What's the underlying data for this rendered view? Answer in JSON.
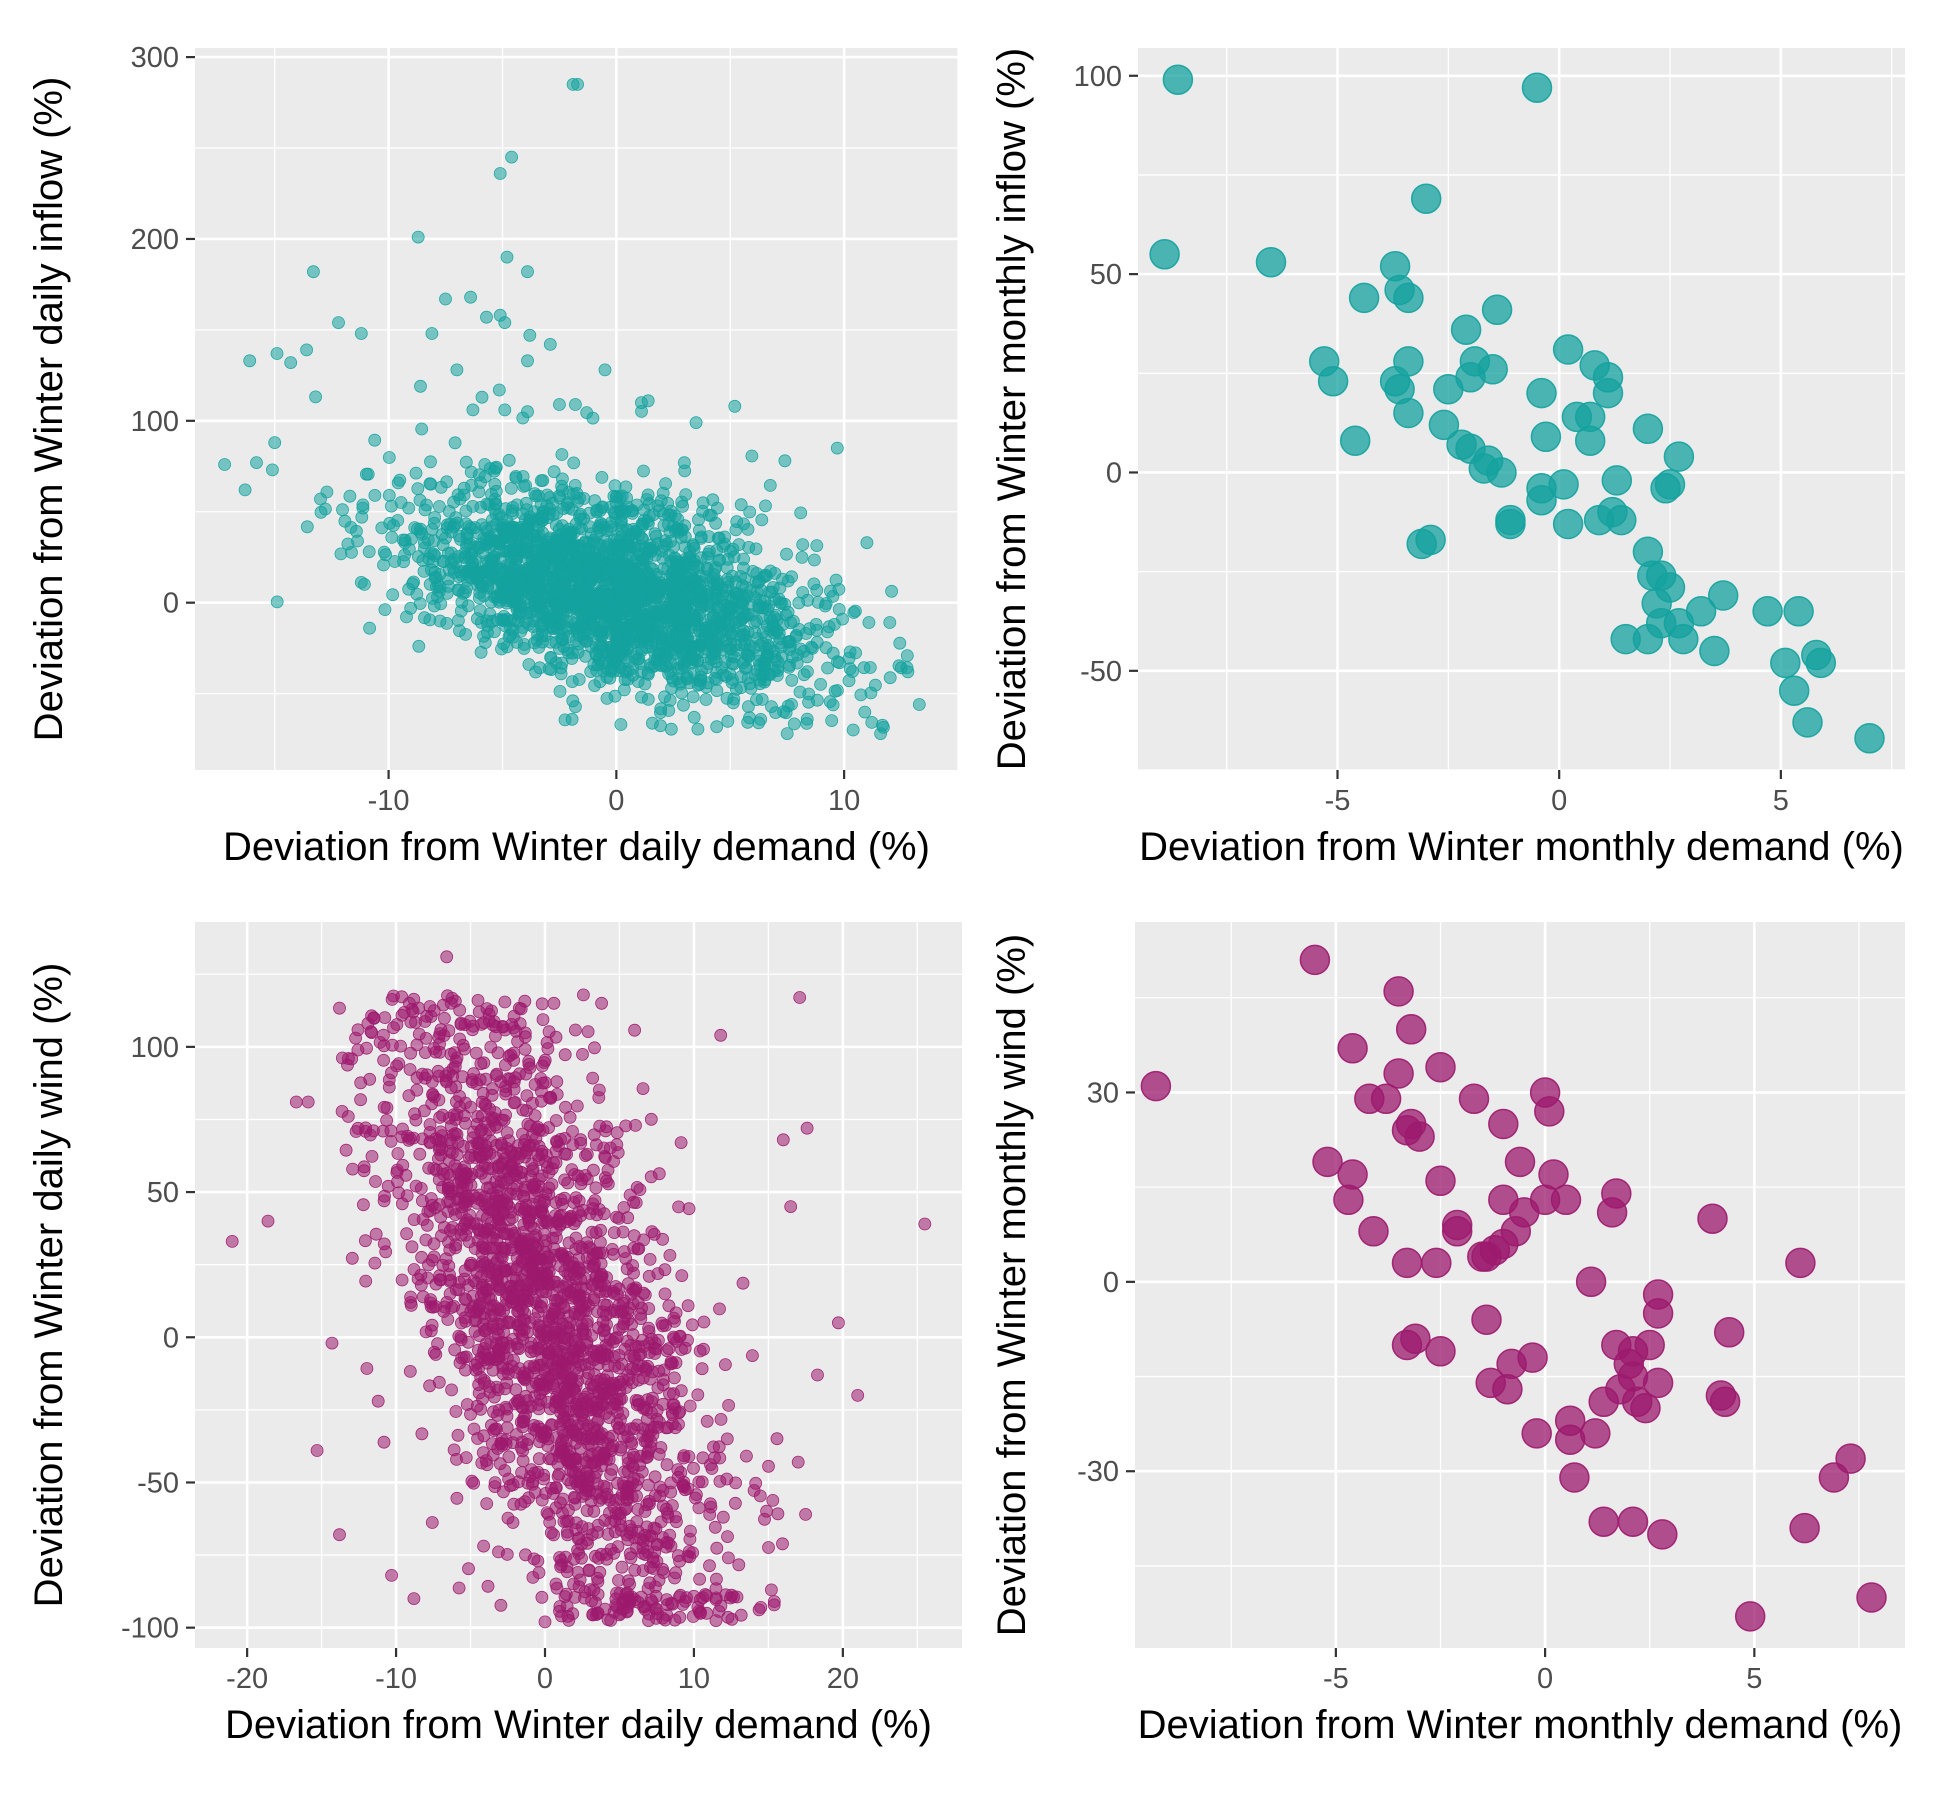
{
  "colors": {
    "teal": "#14a29f",
    "magenta": "#9c1a6e",
    "panel": "#ebebeb",
    "grid": "#ffffff"
  },
  "chart_data": [
    {
      "type": "scatter",
      "id": "daily-inflow",
      "title": "",
      "xlabel": "Deviation from Winter daily demand (%)",
      "ylabel": "Deviation from Winter daily inflow (%)",
      "xlim": [
        -18.5,
        15
      ],
      "ylim": [
        -92,
        305
      ],
      "xticks": [
        -10,
        0,
        10
      ],
      "yticks": [
        0,
        100,
        200,
        300
      ],
      "color": "teal",
      "marker_size": "small",
      "opacity": 0.55,
      "point_count_approx": 2400,
      "correlation_slope": -3.2,
      "intercept": 5,
      "x_range_observed": [
        -17,
        13
      ],
      "y_range_observed": [
        -72,
        285
      ],
      "notable_points": [
        {
          "x": -1.9,
          "y": 285
        },
        {
          "x": -1.7,
          "y": 285
        },
        {
          "x": -4.6,
          "y": 245
        },
        {
          "x": -5.1,
          "y": 236
        },
        {
          "x": -4.8,
          "y": 190
        },
        {
          "x": -3.9,
          "y": 182
        },
        {
          "x": -8.7,
          "y": 201
        },
        {
          "x": -13.3,
          "y": 182
        },
        {
          "x": -12.2,
          "y": 154
        },
        {
          "x": -11.2,
          "y": 148
        },
        {
          "x": -16.1,
          "y": 133
        },
        {
          "x": -14.9,
          "y": 137
        },
        {
          "x": -14.3,
          "y": 132
        },
        {
          "x": -13.6,
          "y": 139
        },
        {
          "x": -8.1,
          "y": 148
        },
        {
          "x": -7.5,
          "y": 167
        },
        {
          "x": -6.4,
          "y": 168
        },
        {
          "x": -5.7,
          "y": 157
        },
        {
          "x": -5.1,
          "y": 158
        },
        {
          "x": -4.9,
          "y": 154
        },
        {
          "x": -3.8,
          "y": 147
        },
        {
          "x": -2.9,
          "y": 142
        },
        {
          "x": -3.9,
          "y": 133
        },
        {
          "x": -7.0,
          "y": 128
        },
        {
          "x": -0.5,
          "y": 128
        },
        {
          "x": -8.6,
          "y": 119
        },
        {
          "x": -5.9,
          "y": 113
        },
        {
          "x": -6.3,
          "y": 106
        },
        {
          "x": -4.9,
          "y": 106
        },
        {
          "x": -3.9,
          "y": 105
        },
        {
          "x": -2.5,
          "y": 109
        },
        {
          "x": -1.8,
          "y": 109
        },
        {
          "x": 1.1,
          "y": 110
        },
        {
          "x": 1.4,
          "y": 111
        },
        {
          "x": 5.2,
          "y": 108
        },
        {
          "x": 3.5,
          "y": 99
        },
        {
          "x": 9.7,
          "y": 85
        },
        {
          "x": 7.4,
          "y": 78
        },
        {
          "x": -17.2,
          "y": 76
        },
        {
          "x": -15.8,
          "y": 77
        },
        {
          "x": -15.1,
          "y": 73
        },
        {
          "x": -16.3,
          "y": 62
        },
        {
          "x": -15.0,
          "y": 88
        },
        {
          "x": 11.0,
          "y": 33
        },
        {
          "x": 12.8,
          "y": -38
        },
        {
          "x": 13.3,
          "y": -56
        },
        {
          "x": 11.6,
          "y": -72
        },
        {
          "x": 10.4,
          "y": -70
        },
        {
          "x": 0.2,
          "y": -67
        },
        {
          "x": 7.5,
          "y": -72
        }
      ]
    },
    {
      "type": "scatter",
      "id": "monthly-inflow",
      "title": "",
      "xlabel": "Deviation from Winter monthly demand (%)",
      "ylabel": "Deviation from Winter monthly inflow (%)",
      "xlim": [
        -9.5,
        7.8
      ],
      "ylim": [
        -75,
        107
      ],
      "xticks": [
        -5,
        0,
        5
      ],
      "yticks": [
        -50,
        0,
        50,
        100
      ],
      "color": "teal",
      "marker_size": "large",
      "opacity": 0.75,
      "points": [
        {
          "x": -8.6,
          "y": 99
        },
        {
          "x": -0.5,
          "y": 97
        },
        {
          "x": -8.9,
          "y": 55
        },
        {
          "x": -6.5,
          "y": 53
        },
        {
          "x": -3.0,
          "y": 69
        },
        {
          "x": -3.7,
          "y": 52
        },
        {
          "x": -3.6,
          "y": 46
        },
        {
          "x": -3.4,
          "y": 44
        },
        {
          "x": -4.4,
          "y": 44
        },
        {
          "x": -1.4,
          "y": 41
        },
        {
          "x": -2.1,
          "y": 36
        },
        {
          "x": -5.3,
          "y": 28
        },
        {
          "x": -5.1,
          "y": 23
        },
        {
          "x": -3.4,
          "y": 28
        },
        {
          "x": -3.7,
          "y": 23
        },
        {
          "x": -3.6,
          "y": 21
        },
        {
          "x": -2.5,
          "y": 21
        },
        {
          "x": -1.9,
          "y": 28
        },
        {
          "x": -2.0,
          "y": 24
        },
        {
          "x": -1.5,
          "y": 26
        },
        {
          "x": -3.4,
          "y": 15
        },
        {
          "x": -2.6,
          "y": 12
        },
        {
          "x": -4.6,
          "y": 8
        },
        {
          "x": -2.2,
          "y": 7
        },
        {
          "x": -2.0,
          "y": 6
        },
        {
          "x": -1.6,
          "y": 3
        },
        {
          "x": -1.7,
          "y": 1
        },
        {
          "x": -1.3,
          "y": 0
        },
        {
          "x": -0.4,
          "y": -7
        },
        {
          "x": -1.1,
          "y": -12
        },
        {
          "x": -1.1,
          "y": -13
        },
        {
          "x": -3.1,
          "y": -18
        },
        {
          "x": -2.9,
          "y": -17
        },
        {
          "x": -0.4,
          "y": -4
        },
        {
          "x": 0.2,
          "y": 31
        },
        {
          "x": 0.8,
          "y": 27
        },
        {
          "x": 1.1,
          "y": 24
        },
        {
          "x": 1.1,
          "y": 20
        },
        {
          "x": -0.4,
          "y": 20
        },
        {
          "x": 0.4,
          "y": 14
        },
        {
          "x": 0.7,
          "y": 14
        },
        {
          "x": -0.3,
          "y": 9
        },
        {
          "x": 0.7,
          "y": 8
        },
        {
          "x": 0.1,
          "y": -3
        },
        {
          "x": 0.2,
          "y": -13
        },
        {
          "x": 0.9,
          "y": -12
        },
        {
          "x": 1.3,
          "y": -2
        },
        {
          "x": 1.2,
          "y": -10
        },
        {
          "x": 1.4,
          "y": -12
        },
        {
          "x": 2.0,
          "y": 11
        },
        {
          "x": 2.7,
          "y": 4
        },
        {
          "x": 2.5,
          "y": -3
        },
        {
          "x": 2.4,
          "y": -4
        },
        {
          "x": 2.0,
          "y": -20
        },
        {
          "x": 2.1,
          "y": -26
        },
        {
          "x": 2.3,
          "y": -26
        },
        {
          "x": 2.5,
          "y": -29
        },
        {
          "x": 2.2,
          "y": -33
        },
        {
          "x": 2.3,
          "y": -38
        },
        {
          "x": 2.0,
          "y": -42
        },
        {
          "x": 1.5,
          "y": -42
        },
        {
          "x": 2.7,
          "y": -38
        },
        {
          "x": 2.8,
          "y": -42
        },
        {
          "x": 3.2,
          "y": -35
        },
        {
          "x": 3.5,
          "y": -45
        },
        {
          "x": 3.7,
          "y": -31
        },
        {
          "x": 4.7,
          "y": -35
        },
        {
          "x": 5.4,
          "y": -35
        },
        {
          "x": 5.1,
          "y": -48
        },
        {
          "x": 5.8,
          "y": -46
        },
        {
          "x": 5.9,
          "y": -48
        },
        {
          "x": 5.3,
          "y": -55
        },
        {
          "x": 5.6,
          "y": -63
        },
        {
          "x": 7.0,
          "y": -67
        }
      ]
    },
    {
      "type": "scatter",
      "id": "daily-wind",
      "title": "",
      "xlabel": "Deviation from Winter daily demand (%)",
      "ylabel": "Deviation from Winter daily wind (%)",
      "xlim": [
        -23.5,
        28
      ],
      "ylim": [
        -107,
        143
      ],
      "xticks": [
        -20,
        -10,
        0,
        10,
        20
      ],
      "yticks": [
        -100,
        -50,
        0,
        50,
        100
      ],
      "color": "magenta",
      "marker_size": "small",
      "opacity": 0.55,
      "point_count_approx": 2400,
      "correlation_slope": -5.5,
      "intercept": 0,
      "x_range_observed": [
        -21,
        25.5
      ],
      "y_range_observed": [
        -98,
        131
      ],
      "notable_points": [
        {
          "x": -21.0,
          "y": 33
        },
        {
          "x": -18.6,
          "y": 40
        },
        {
          "x": -16.7,
          "y": 81
        },
        {
          "x": -15.9,
          "y": 81
        },
        {
          "x": -15.3,
          "y": -39
        },
        {
          "x": -14.3,
          "y": -2
        },
        {
          "x": -13.8,
          "y": -68
        },
        {
          "x": -13.2,
          "y": 96
        },
        {
          "x": -11.5,
          "y": 110
        },
        {
          "x": -11.2,
          "y": -22
        },
        {
          "x": -10.3,
          "y": -82
        },
        {
          "x": -8.8,
          "y": -90
        },
        {
          "x": -6.6,
          "y": 131
        },
        {
          "x": -4.5,
          "y": 116
        },
        {
          "x": 0.6,
          "y": 115
        },
        {
          "x": 3.8,
          "y": 115
        },
        {
          "x": 11.8,
          "y": 104
        },
        {
          "x": 17.1,
          "y": 117
        },
        {
          "x": 16.0,
          "y": 68
        },
        {
          "x": 16.5,
          "y": 45
        },
        {
          "x": 17.6,
          "y": 72
        },
        {
          "x": 25.5,
          "y": 39
        },
        {
          "x": 19.7,
          "y": 5
        },
        {
          "x": 18.3,
          "y": -13
        },
        {
          "x": 21.0,
          "y": -20
        },
        {
          "x": 17.0,
          "y": -43
        },
        {
          "x": 17.5,
          "y": -61
        },
        {
          "x": 15.2,
          "y": -87
        },
        {
          "x": 15.4,
          "y": -91
        },
        {
          "x": 0.0,
          "y": -98
        }
      ]
    },
    {
      "type": "scatter",
      "id": "monthly-wind",
      "title": "",
      "xlabel": "Deviation from Winter monthly demand (%)",
      "ylabel": "Deviation from Winter monthly wind (%)",
      "xlim": [
        -9.8,
        8.6
      ],
      "ylim": [
        -58,
        57
      ],
      "xticks": [
        -5,
        0,
        5
      ],
      "yticks": [
        -30,
        0,
        30
      ],
      "color": "magenta",
      "marker_size": "large",
      "opacity": 0.75,
      "points": [
        {
          "x": -9.3,
          "y": 31
        },
        {
          "x": -5.5,
          "y": 51
        },
        {
          "x": -3.5,
          "y": 46
        },
        {
          "x": -4.6,
          "y": 37
        },
        {
          "x": -3.2,
          "y": 40
        },
        {
          "x": -3.5,
          "y": 33
        },
        {
          "x": -2.5,
          "y": 34
        },
        {
          "x": -4.2,
          "y": 29
        },
        {
          "x": -3.8,
          "y": 29
        },
        {
          "x": -1.7,
          "y": 29
        },
        {
          "x": -3.3,
          "y": 24
        },
        {
          "x": -3.2,
          "y": 25
        },
        {
          "x": -3.0,
          "y": 23
        },
        {
          "x": -1.0,
          "y": 25
        },
        {
          "x": 0.0,
          "y": 30
        },
        {
          "x": 0.1,
          "y": 27
        },
        {
          "x": -5.2,
          "y": 19
        },
        {
          "x": -4.6,
          "y": 17
        },
        {
          "x": -2.5,
          "y": 16
        },
        {
          "x": -0.6,
          "y": 19
        },
        {
          "x": 0.2,
          "y": 17
        },
        {
          "x": -4.7,
          "y": 13
        },
        {
          "x": -4.1,
          "y": 8
        },
        {
          "x": -1.0,
          "y": 13
        },
        {
          "x": 0.0,
          "y": 13
        },
        {
          "x": 0.5,
          "y": 13
        },
        {
          "x": -2.1,
          "y": 8
        },
        {
          "x": -2.1,
          "y": 9
        },
        {
          "x": -0.5,
          "y": 11
        },
        {
          "x": -0.7,
          "y": 8
        },
        {
          "x": -1.0,
          "y": 6
        },
        {
          "x": -1.2,
          "y": 5
        },
        {
          "x": -1.4,
          "y": 4
        },
        {
          "x": -1.5,
          "y": 4
        },
        {
          "x": -3.3,
          "y": 3
        },
        {
          "x": -2.6,
          "y": 3
        },
        {
          "x": 1.7,
          "y": 14
        },
        {
          "x": 1.6,
          "y": 11
        },
        {
          "x": 4.0,
          "y": 10
        },
        {
          "x": 6.1,
          "y": 3
        },
        {
          "x": 1.1,
          "y": 0
        },
        {
          "x": 2.7,
          "y": -2
        },
        {
          "x": 2.7,
          "y": -5
        },
        {
          "x": -1.4,
          "y": -6
        },
        {
          "x": -3.3,
          "y": -10
        },
        {
          "x": -3.1,
          "y": -9
        },
        {
          "x": -2.5,
          "y": -11
        },
        {
          "x": 4.4,
          "y": -8
        },
        {
          "x": -0.3,
          "y": -12
        },
        {
          "x": -0.8,
          "y": -13
        },
        {
          "x": 1.7,
          "y": -10
        },
        {
          "x": 2.1,
          "y": -11
        },
        {
          "x": 2.5,
          "y": -10
        },
        {
          "x": 2.0,
          "y": -13
        },
        {
          "x": 2.1,
          "y": -15
        },
        {
          "x": -1.3,
          "y": -16
        },
        {
          "x": -0.9,
          "y": -17
        },
        {
          "x": 1.8,
          "y": -17
        },
        {
          "x": 2.7,
          "y": -16
        },
        {
          "x": 4.2,
          "y": -18
        },
        {
          "x": 4.3,
          "y": -19
        },
        {
          "x": 1.4,
          "y": -19
        },
        {
          "x": 2.2,
          "y": -19
        },
        {
          "x": 2.4,
          "y": -20
        },
        {
          "x": 0.6,
          "y": -22
        },
        {
          "x": 1.2,
          "y": -24
        },
        {
          "x": -0.2,
          "y": -24
        },
        {
          "x": 0.6,
          "y": -25
        },
        {
          "x": 0.7,
          "y": -31
        },
        {
          "x": 7.3,
          "y": -28
        },
        {
          "x": 6.9,
          "y": -31
        },
        {
          "x": 1.4,
          "y": -38
        },
        {
          "x": 2.1,
          "y": -38
        },
        {
          "x": 2.8,
          "y": -40
        },
        {
          "x": 6.2,
          "y": -39
        },
        {
          "x": 7.8,
          "y": -50
        },
        {
          "x": 4.9,
          "y": -53
        }
      ]
    }
  ]
}
